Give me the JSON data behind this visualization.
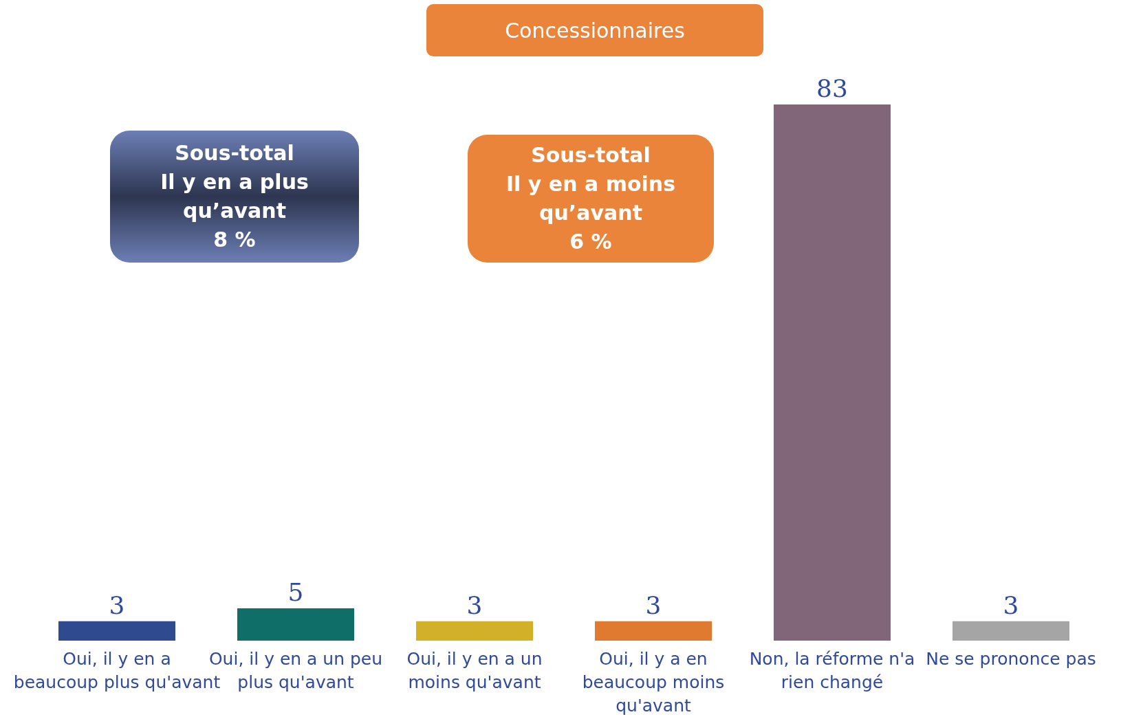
{
  "chart_data": {
    "type": "bar",
    "title": "Concessionnaires",
    "categories": [
      "Oui, il y en a beaucoup plus qu'avant",
      "Oui, il y en a un peu plus qu'avant",
      "Oui, il y en a un moins qu'avant",
      "Oui, il y a en beaucoup moins qu'avant",
      "Non, la réforme n'a rien changé",
      "Ne se prononce pas"
    ],
    "values": [
      3,
      5,
      3,
      3,
      83,
      3
    ],
    "colors": [
      "#2f4a8e",
      "#0f6f68",
      "#d2b028",
      "#e07a30",
      "#806678",
      "#a5a5a5"
    ],
    "data_labels": true,
    "annotations": [
      "Sous-total\nIl y en a plus\nqu’avant\n8 %",
      "Sous-total\nIl y en a moins\nqu’avant\n6 %"
    ]
  }
}
